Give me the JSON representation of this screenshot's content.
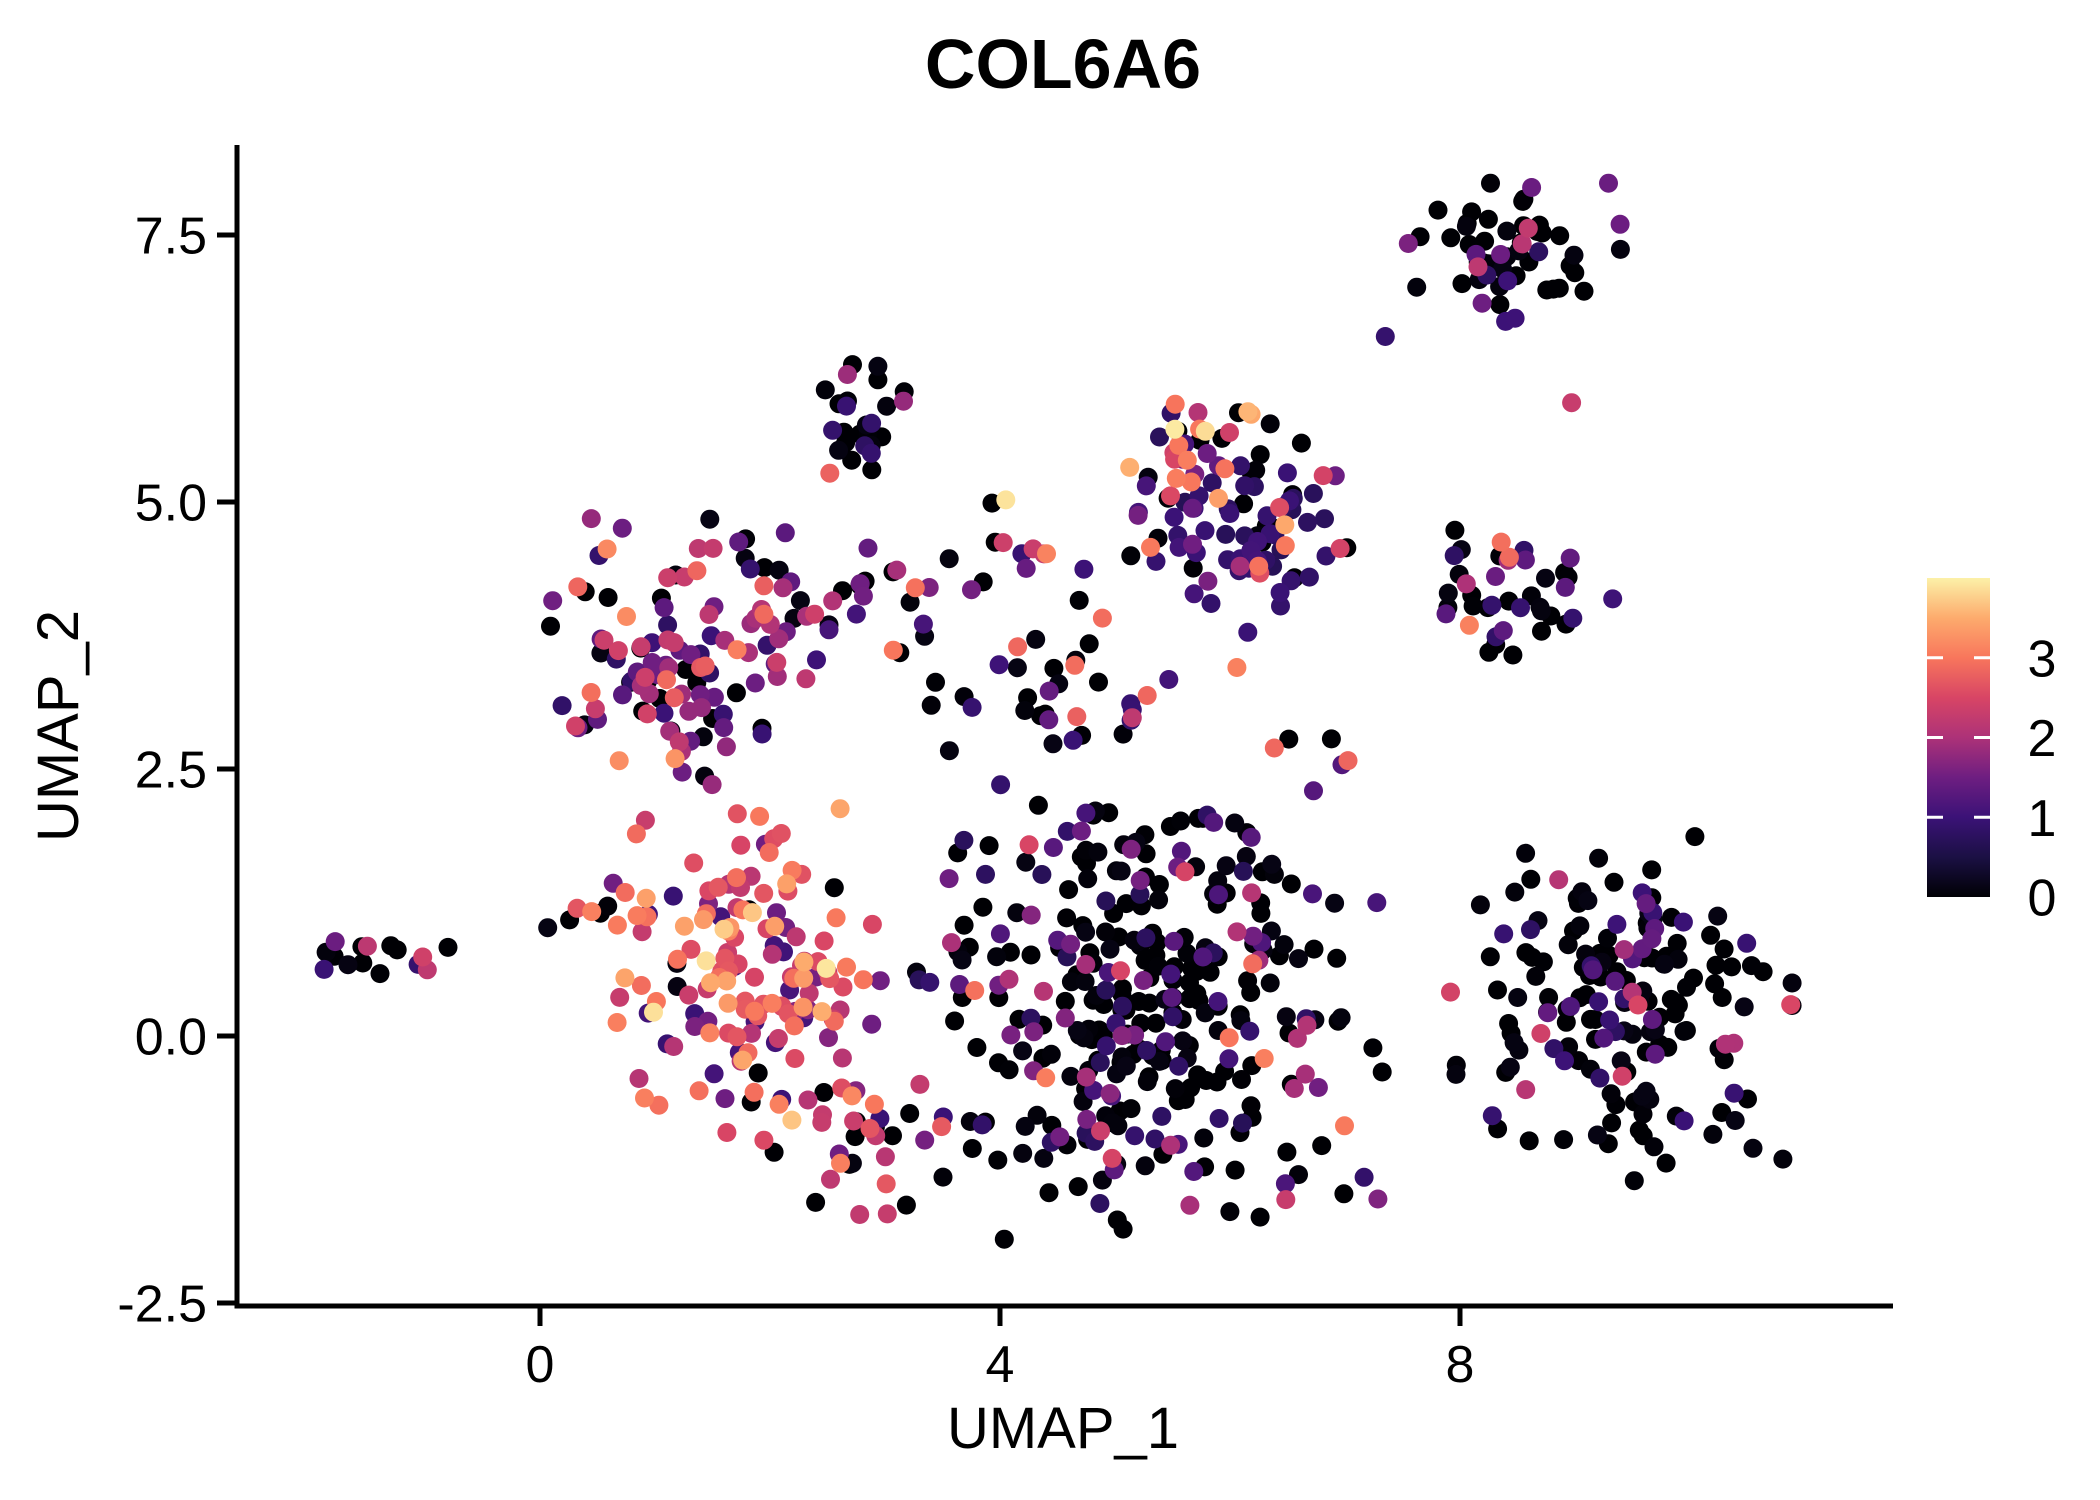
{
  "title": "COL6A6",
  "axes": {
    "x_label": "UMAP_1",
    "y_label": "UMAP_2",
    "x_ticks": [
      {
        "v": 0,
        "label": "0"
      },
      {
        "v": 4,
        "label": "4"
      },
      {
        "v": 8,
        "label": "8"
      }
    ],
    "y_ticks": [
      {
        "v": -2.5,
        "label": "-2.5"
      },
      {
        "v": 0,
        "label": "0.0"
      },
      {
        "v": 2.5,
        "label": "2.5"
      },
      {
        "v": 5,
        "label": "5.0"
      },
      {
        "v": 7.5,
        "label": "7.5"
      }
    ]
  },
  "colorbar": {
    "domain": [
      0,
      4
    ],
    "ticks": [
      {
        "v": 0,
        "label": "0"
      },
      {
        "v": 1,
        "label": "1"
      },
      {
        "v": 2,
        "label": "2"
      },
      {
        "v": 3,
        "label": "3"
      }
    ]
  },
  "colors": {
    "background": "#ffffff",
    "axis": "#000000",
    "text": "#000000",
    "colormap": [
      [
        0.0,
        "#000004"
      ],
      [
        0.5,
        "#1b1044"
      ],
      [
        1.0,
        "#3b1277"
      ],
      [
        1.5,
        "#6e1e81"
      ],
      [
        2.0,
        "#ad3278"
      ],
      [
        2.5,
        "#d84565"
      ],
      [
        3.0,
        "#f8765c"
      ],
      [
        3.5,
        "#fdab6d"
      ],
      [
        4.0,
        "#fcf1a8"
      ]
    ]
  },
  "chart_data": {
    "type": "scatter",
    "title": "COL6A6",
    "subtitle": "UMAP feature plot of gene expression (0 = black, high = cream/yellow, magma colour scale)",
    "xlabel": "UMAP_1",
    "ylabel": "UMAP_2",
    "xlim": [
      -2.6,
      11.7
    ],
    "ylim": [
      -2.55,
      8.35
    ],
    "grid": false,
    "legend_position": "right-colorbar",
    "colorbar_domain": [
      0,
      4
    ],
    "clusters": [
      {
        "name": "far-left-small",
        "cx": -1.55,
        "cy": 0.68,
        "sx": 0.22,
        "sy": 0.13,
        "n": 11,
        "vals": [
          [
            0,
            0.45
          ],
          [
            0.9,
            0.2
          ],
          [
            1.5,
            0.1
          ],
          [
            2.3,
            0.1
          ],
          [
            2.7,
            0.08
          ],
          [
            3.4,
            0.07
          ]
        ]
      },
      {
        "name": "upper-left-mixed",
        "cx": 1.25,
        "cy": 3.6,
        "sx": 0.55,
        "sy": 0.6,
        "n": 110,
        "vals": [
          [
            0,
            0.17
          ],
          [
            0.9,
            0.14
          ],
          [
            1.4,
            0.2
          ],
          [
            1.9,
            0.16
          ],
          [
            2.3,
            0.18
          ],
          [
            2.8,
            0.1
          ],
          [
            3.2,
            0.05
          ]
        ]
      },
      {
        "name": "left-high-expression",
        "cx": 1.8,
        "cy": 0.6,
        "sx": 0.6,
        "sy": 0.75,
        "n": 150,
        "vals": [
          [
            0,
            0.06
          ],
          [
            1,
            0.06
          ],
          [
            1.6,
            0.1
          ],
          [
            2.2,
            0.16
          ],
          [
            2.6,
            0.22
          ],
          [
            3,
            0.22
          ],
          [
            3.4,
            0.14
          ],
          [
            3.8,
            0.04
          ]
        ]
      },
      {
        "name": "left-high-tail-bottom",
        "cx": 2.8,
        "cy": -1.0,
        "sx": 0.4,
        "sy": 0.35,
        "n": 30,
        "vals": [
          [
            0,
            0.3
          ],
          [
            1,
            0.1
          ],
          [
            1.6,
            0.1
          ],
          [
            2.2,
            0.2
          ],
          [
            2.7,
            0.2
          ],
          [
            3.2,
            0.1
          ]
        ]
      },
      {
        "name": "top-mid-left-black",
        "cx": 2.95,
        "cy": 5.7,
        "sx": 0.22,
        "sy": 0.28,
        "n": 28,
        "vals": [
          [
            0,
            0.75
          ],
          [
            0.9,
            0.15
          ],
          [
            1.9,
            0.05
          ],
          [
            2.8,
            0.05
          ]
        ]
      },
      {
        "name": "mid-small-group",
        "cx": 4.35,
        "cy": 4.55,
        "sx": 0.25,
        "sy": 0.15,
        "n": 8,
        "vals": [
          [
            0,
            0.38
          ],
          [
            1,
            0.2
          ],
          [
            1.4,
            0.12
          ],
          [
            2.3,
            0.15
          ],
          [
            3,
            0.15
          ]
        ]
      },
      {
        "name": "top-middle-indigo",
        "cx": 6.05,
        "cy": 4.9,
        "sx": 0.5,
        "sy": 0.55,
        "n": 95,
        "vals": [
          [
            0,
            0.2
          ],
          [
            0.8,
            0.3
          ],
          [
            1,
            0.25
          ],
          [
            1.5,
            0.1
          ],
          [
            2,
            0.05
          ],
          [
            2.5,
            0.04
          ],
          [
            3,
            0.04
          ],
          [
            3.5,
            0.02
          ]
        ]
      },
      {
        "name": "top-middle-warm-streak",
        "cx": 5.7,
        "cy": 5.55,
        "sx": 0.3,
        "sy": 0.2,
        "n": 14,
        "vals": [
          [
            2.4,
            0.3
          ],
          [
            3,
            0.35
          ],
          [
            3.5,
            0.2
          ],
          [
            3.9,
            0.15
          ]
        ]
      },
      {
        "name": "top-right-black",
        "cx": 8.5,
        "cy": 7.35,
        "sx": 0.45,
        "sy": 0.33,
        "n": 55,
        "vals": [
          [
            0,
            0.78
          ],
          [
            0.9,
            0.12
          ],
          [
            1.4,
            0.06
          ],
          [
            2.2,
            0.04
          ]
        ]
      },
      {
        "name": "right-mid-mixed",
        "cx": 8.5,
        "cy": 4.2,
        "sx": 0.42,
        "sy": 0.3,
        "n": 40,
        "vals": [
          [
            0,
            0.45
          ],
          [
            0.9,
            0.2
          ],
          [
            1.4,
            0.15
          ],
          [
            2,
            0.08
          ],
          [
            2.4,
            0.06
          ],
          [
            3,
            0.06
          ]
        ]
      },
      {
        "name": "central-black-mass",
        "cx": 5.3,
        "cy": 0.3,
        "sx": 0.95,
        "sy": 1.05,
        "n": 330,
        "vals": [
          [
            0,
            0.66
          ],
          [
            0.8,
            0.12
          ],
          [
            1.2,
            0.08
          ],
          [
            1.6,
            0.05
          ],
          [
            2,
            0.05
          ],
          [
            2.4,
            0.025
          ],
          [
            3,
            0.015
          ]
        ]
      },
      {
        "name": "bottom-right-black",
        "cx": 9.4,
        "cy": 0.3,
        "sx": 0.7,
        "sy": 0.8,
        "n": 170,
        "vals": [
          [
            0,
            0.68
          ],
          [
            0.9,
            0.16
          ],
          [
            1.3,
            0.09
          ],
          [
            2,
            0.05
          ],
          [
            2.5,
            0.02
          ]
        ]
      },
      {
        "name": "scatter-row-mid-top",
        "cx": 2.9,
        "cy": 4.1,
        "sx": 0.6,
        "sy": 0.3,
        "n": 30,
        "vals": [
          [
            0,
            0.6
          ],
          [
            1,
            0.15
          ],
          [
            1.5,
            0.1
          ],
          [
            2,
            0.1
          ],
          [
            3,
            0.05
          ]
        ]
      },
      {
        "name": "scatter-center-gap",
        "cx": 4.3,
        "cy": 3.3,
        "sx": 0.6,
        "sy": 0.4,
        "n": 35,
        "vals": [
          [
            0,
            0.7
          ],
          [
            1,
            0.12
          ],
          [
            1.5,
            0.08
          ],
          [
            2,
            0.06
          ],
          [
            2.8,
            0.04
          ]
        ]
      },
      {
        "name": "left-mid-mini-group",
        "cx": 0.55,
        "cy": 1.12,
        "sx": 0.28,
        "sy": 0.1,
        "n": 9,
        "vals": [
          [
            0,
            0.4
          ],
          [
            1,
            0.1
          ],
          [
            2.6,
            0.3
          ],
          [
            3,
            0.2
          ]
        ]
      },
      {
        "name": "mini-warm-pocket",
        "cx": 6.75,
        "cy": 2.68,
        "sx": 0.18,
        "sy": 0.14,
        "n": 5,
        "vals": [
          [
            0,
            0.4
          ],
          [
            1.3,
            0.2
          ],
          [
            2.2,
            0.2
          ],
          [
            2.9,
            0.2
          ]
        ]
      }
    ],
    "singles": [
      [
        4.05,
        5.02,
        3.9
      ],
      [
        3.93,
        4.99,
        0
      ],
      [
        8.97,
        5.93,
        2.3
      ],
      [
        7.35,
        6.55,
        0.9
      ],
      [
        7.55,
        7.42,
        1.6
      ],
      [
        6.06,
        3.45,
        3.1
      ],
      [
        5.15,
        2.98,
        2.2
      ],
      [
        2.52,
        5.27,
        2.8
      ],
      [
        -0.8,
        0.83,
        0
      ],
      [
        -1.02,
        0.74,
        2.4
      ],
      [
        -0.98,
        0.62,
        2.2
      ],
      [
        -1.06,
        0.67,
        0.9
      ]
    ]
  }
}
